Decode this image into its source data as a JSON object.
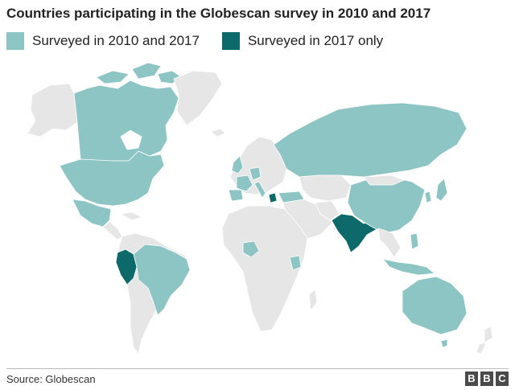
{
  "title": "Countries participating in the Globescan survey in 2010 and 2017",
  "legend": [
    {
      "label": "Surveyed in 2010 and 2017",
      "color": "#8cc5c4"
    },
    {
      "label": "Surveyed in 2017 only",
      "color": "#0e6a6a"
    }
  ],
  "colors": {
    "land": "#e6e6e6",
    "surveyed_both": "#8cc5c4",
    "surveyed_2017": "#0e6a6a",
    "border": "#ffffff"
  },
  "source": "Source: Globescan",
  "logo": {
    "letters": [
      "B",
      "B",
      "C"
    ]
  }
}
